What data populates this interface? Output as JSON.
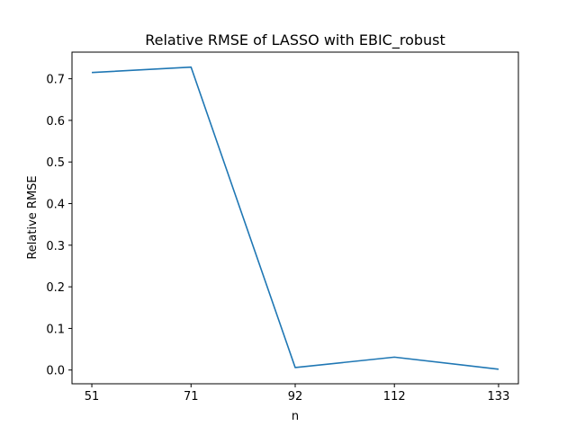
{
  "chart_data": {
    "type": "line",
    "title": "Relative RMSE of LASSO with EBIC_robust",
    "xlabel": "n",
    "ylabel": "Relative RMSE",
    "x": [
      51,
      71,
      92,
      112,
      133
    ],
    "x_tick_labels": [
      "51",
      "71",
      "92",
      "112",
      "133"
    ],
    "series": [
      {
        "values": [
          0.715,
          0.728,
          0.006,
          0.031,
          0.002
        ],
        "color": "#1f77b4"
      }
    ],
    "xlim": [
      47,
      137
    ],
    "ylim": [
      -0.033,
      0.764
    ],
    "y_ticks": [
      0.0,
      0.1,
      0.2,
      0.3,
      0.4,
      0.5,
      0.6,
      0.7
    ],
    "y_tick_labels": [
      "0.0",
      "0.1",
      "0.2",
      "0.3",
      "0.4",
      "0.5",
      "0.6",
      "0.7"
    ],
    "grid": false,
    "legend": "none"
  }
}
